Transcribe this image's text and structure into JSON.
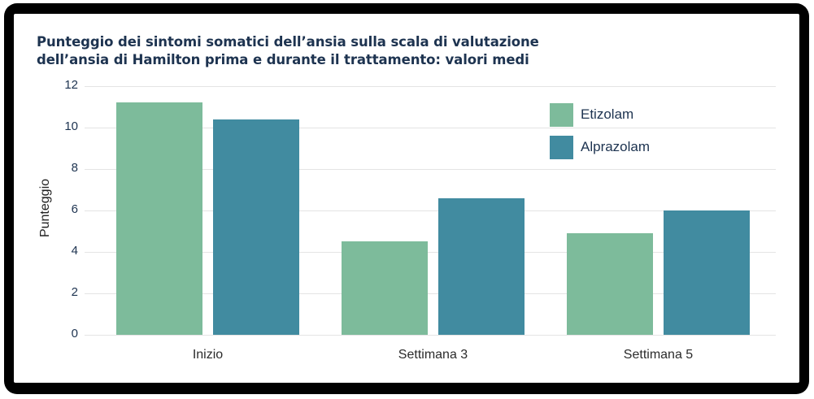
{
  "chart": {
    "title_lines": [
      "Punteggio dei sintomi somatici dell’ansia sulla scala di valutazione",
      "dell’ansia di Hamilton prima e durante il trattamento: valori medi"
    ],
    "ylabel": "Punteggio",
    "yticks": [
      "0",
      "2",
      "4",
      "6",
      "8",
      "10",
      "12"
    ],
    "categories": [
      "Inizio",
      "Settimana 3",
      "Settimana 5"
    ],
    "legend": [
      {
        "label": "Etizolam",
        "color": "#7dbb9b"
      },
      {
        "label": "Alprazolam",
        "color": "#418ba0"
      }
    ]
  },
  "chart_data": {
    "type": "bar",
    "title": "Punteggio dei sintomi somatici dell’ansia sulla scala di valutazione dell’ansia di Hamilton prima e durante il trattamento: valori medi",
    "xlabel": "",
    "ylabel": "Punteggio",
    "categories": [
      "Inizio",
      "Settimana 3",
      "Settimana 5"
    ],
    "series": [
      {
        "name": "Etizolam",
        "color": "#7dbb9b",
        "values": [
          11.2,
          4.5,
          4.9
        ]
      },
      {
        "name": "Alprazolam",
        "color": "#418ba0",
        "values": [
          10.4,
          6.6,
          6.0
        ]
      }
    ],
    "ylim": [
      0,
      12
    ],
    "yticks": [
      0,
      2,
      4,
      6,
      8,
      10,
      12
    ],
    "grid": true,
    "legend_position": "upper right (inside plot)"
  }
}
